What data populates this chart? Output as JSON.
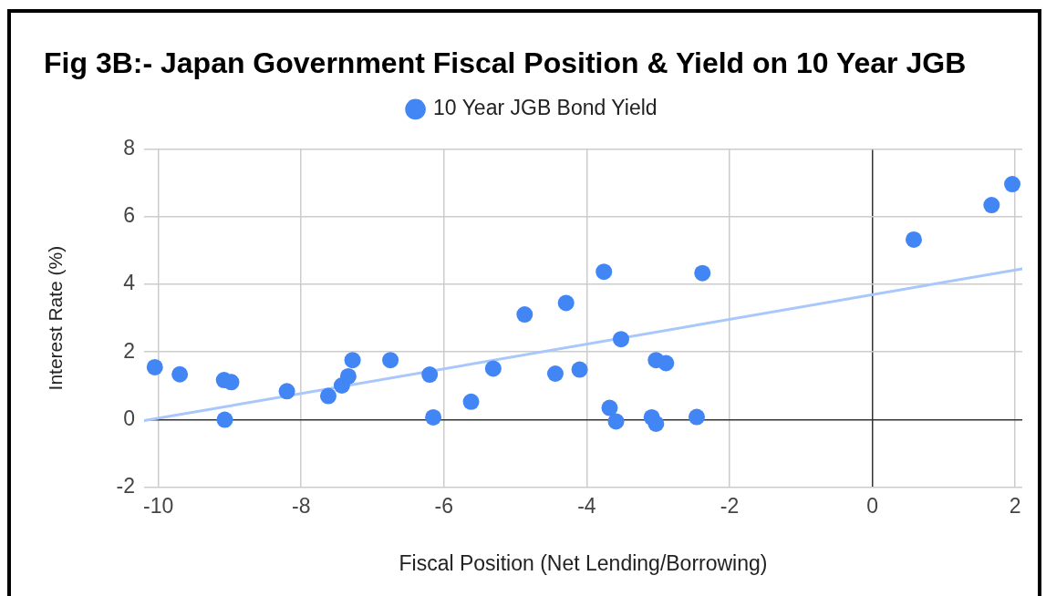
{
  "chart_data": {
    "type": "scatter",
    "title": "Fig 3B:- Japan Government Fiscal Position & Yield on 10 Year JGB",
    "xlabel": "Fiscal Position (Net Lending/Borrowing)",
    "ylabel": "Interest Rate (%)",
    "xlim": [
      -10.2,
      2.1
    ],
    "xticks": [
      -10,
      -8,
      -6,
      -4,
      -2,
      0,
      2
    ],
    "ylim": [
      -2,
      8
    ],
    "yticks": [
      -2,
      0,
      2,
      4,
      6,
      8
    ],
    "grid": true,
    "legend": "top",
    "marker": "circle",
    "series": [
      {
        "name": "10 Year JGB Bond Yield",
        "color": "#4285f4",
        "x": [
          -10.05,
          -9.7,
          -9.08,
          -9.07,
          -8.98,
          -8.2,
          -7.62,
          -7.43,
          -7.34,
          -7.28,
          -6.75,
          -6.2,
          -6.15,
          -5.62,
          -5.31,
          -4.87,
          -4.44,
          -4.29,
          -4.1,
          -3.76,
          -3.68,
          -3.59,
          -3.52,
          -3.09,
          -3.03,
          -3.03,
          -2.89,
          -2.46,
          -2.38,
          0.58,
          1.67,
          1.96
        ],
        "values": [
          1.55,
          1.34,
          1.17,
          0.0,
          1.11,
          0.84,
          0.7,
          1.01,
          1.28,
          1.76,
          1.76,
          1.33,
          0.07,
          0.53,
          1.51,
          3.11,
          1.36,
          3.45,
          1.48,
          4.37,
          0.35,
          -0.05,
          2.38,
          0.07,
          -0.12,
          1.76,
          1.67,
          0.08,
          4.33,
          5.32,
          6.34,
          6.96
        ]
      },
      {
        "type": "line",
        "color": "#a8c7fa",
        "marker": "none",
        "x": [
          -10.2,
          2.1
        ],
        "values": [
          -0.03,
          4.46
        ]
      }
    ]
  }
}
